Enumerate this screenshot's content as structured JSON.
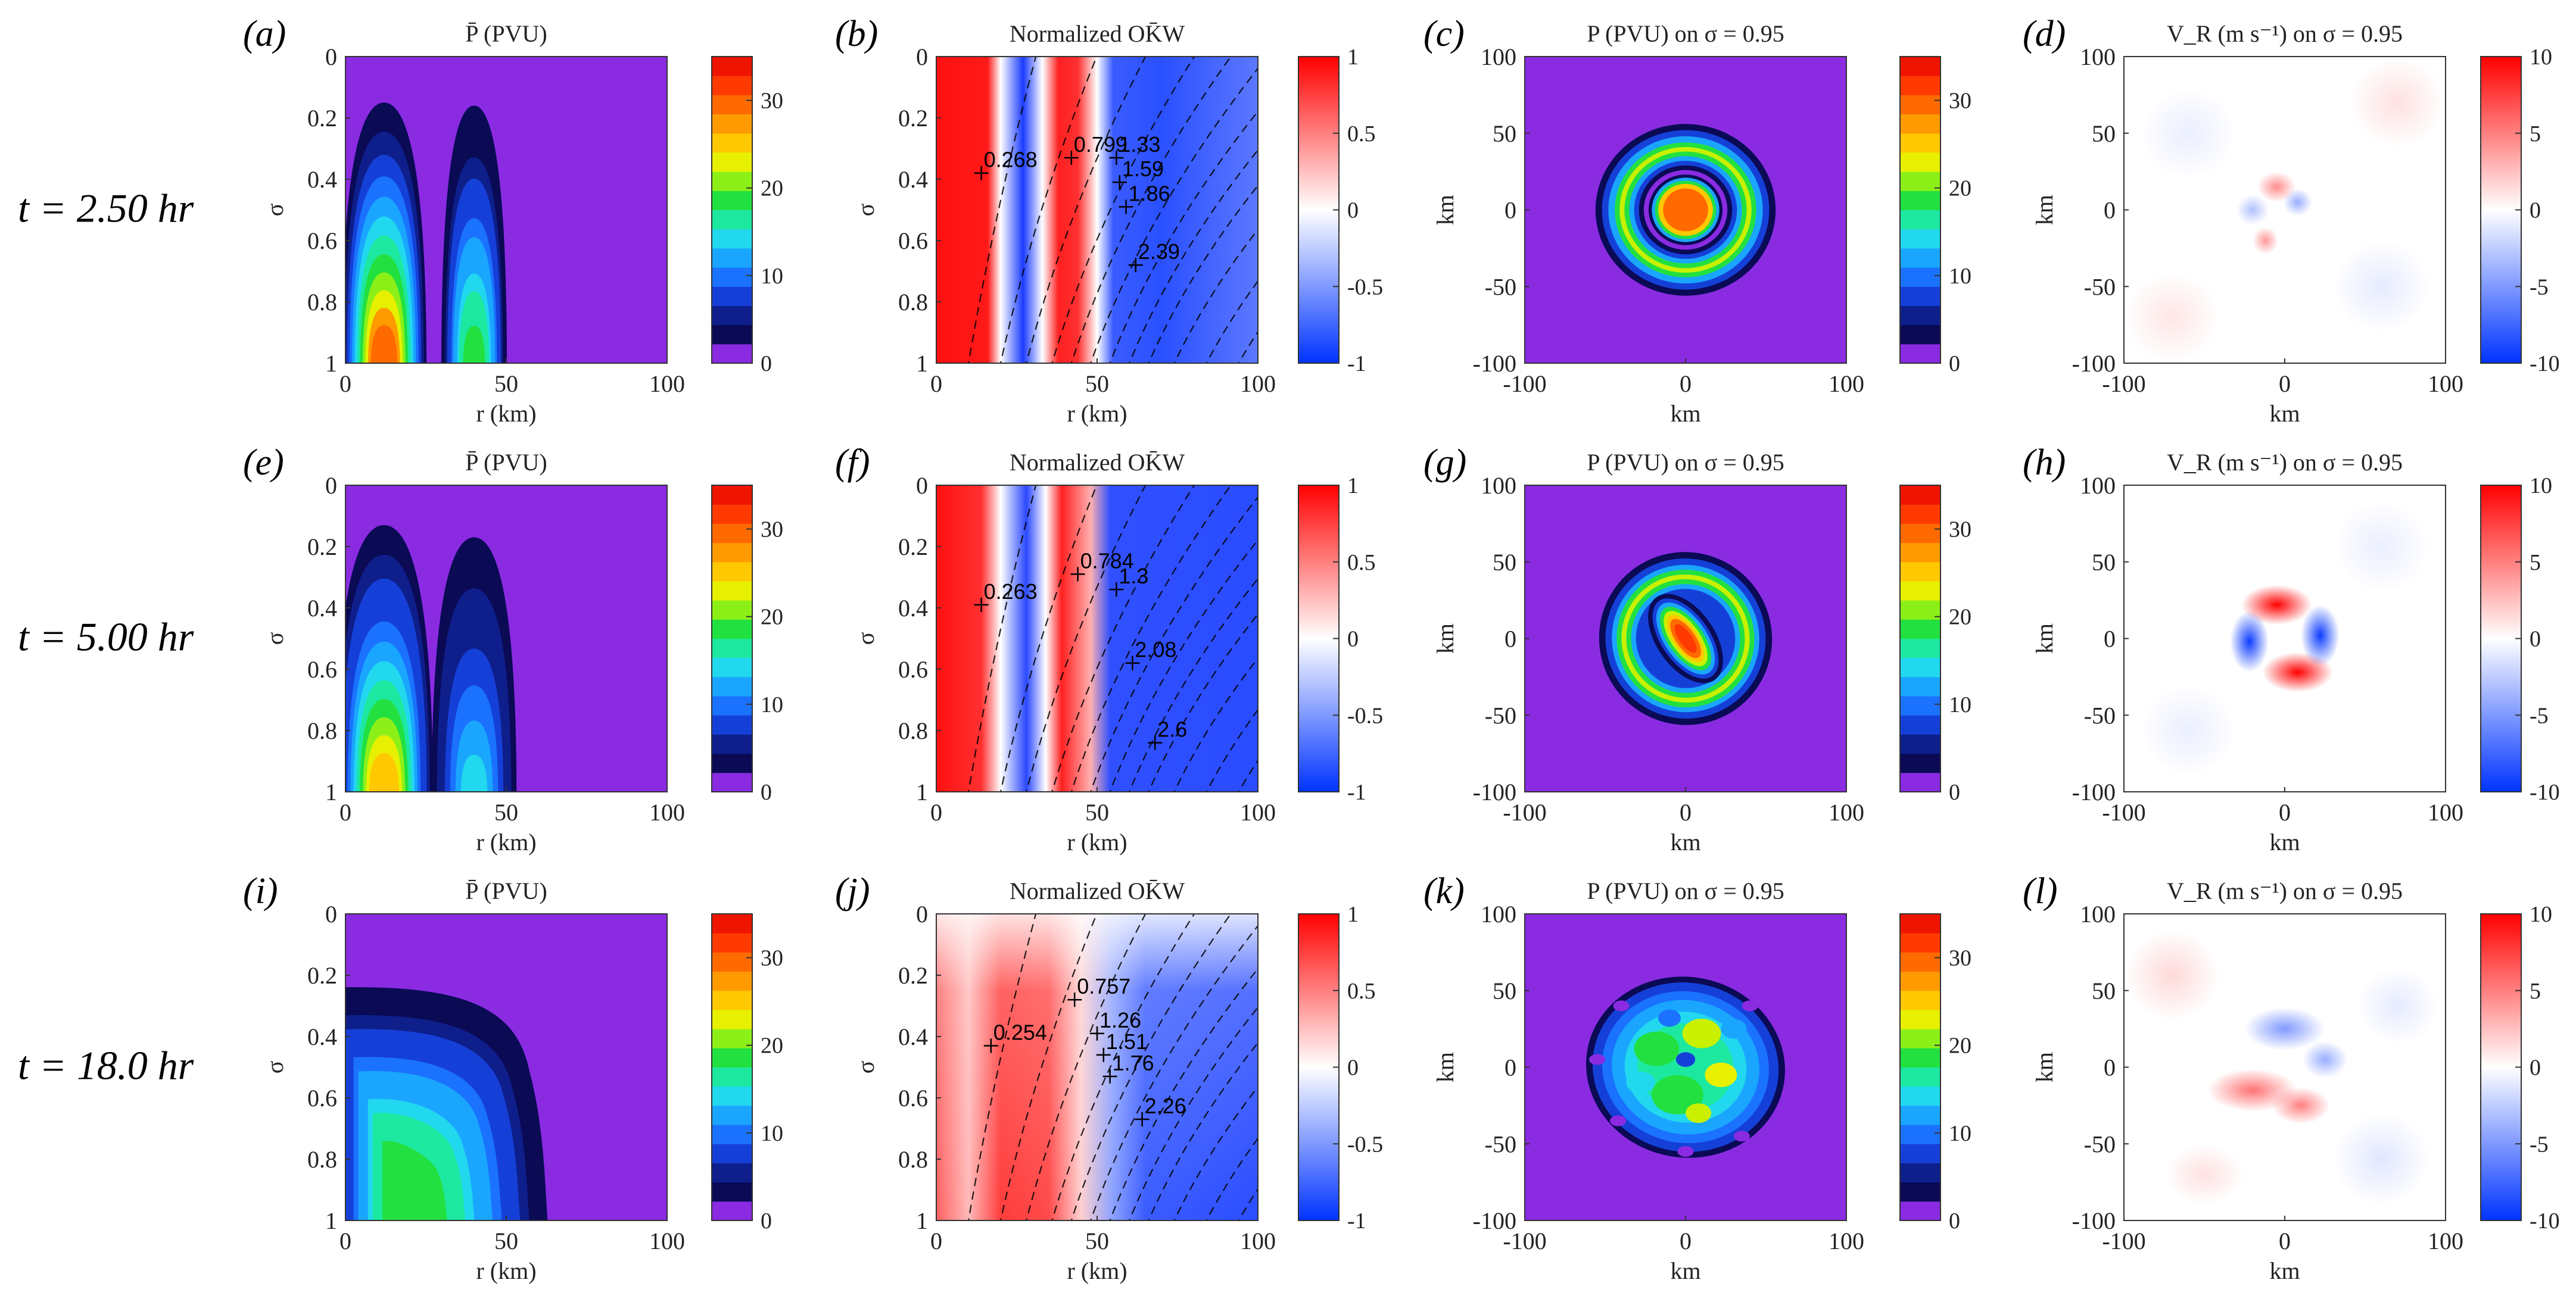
{
  "figure": {
    "row_labels": [
      "t = 2.50 hr",
      "t = 5.00 hr",
      "t = 18.0 hr"
    ],
    "panel_labels": [
      "(a)",
      "(b)",
      "(c)",
      "(d)",
      "(e)",
      "(f)",
      "(g)",
      "(h)",
      "(i)",
      "(j)",
      "(k)",
      "(l)"
    ],
    "column_titles": [
      "P̄ (PVU)",
      "Normalized OK̄W",
      "P (PVU) on σ = 0.95",
      "V_R (m s⁻¹) on σ = 0.95"
    ]
  },
  "colors": {
    "pv_levels": [
      "#8a2be2",
      "#0a0a55",
      "#0e1f8c",
      "#1540d8",
      "#1a72ff",
      "#1aa6ff",
      "#21d8ee",
      "#1de8a0",
      "#22e040",
      "#8cf018",
      "#e6f000",
      "#ffc800",
      "#ff9a00",
      "#ff6a00",
      "#ff3a00",
      "#ee1400"
    ],
    "diverging_neg": "#0033ff",
    "diverging_mid": "#ffffff",
    "diverging_pos": "#ff0000",
    "contour": "#000000"
  },
  "chart_data": [
    {
      "panel": "(a)",
      "type": "heatmap",
      "title": "P̄ (PVU)",
      "xlabel": "r (km)",
      "ylabel": "σ",
      "xlim": [
        0,
        100
      ],
      "ylim": [
        0,
        1
      ],
      "y_reversed": true,
      "xticks": [
        0,
        50,
        100
      ],
      "yticks": [
        0,
        0.2,
        0.4,
        0.6,
        0.8,
        1
      ],
      "colorbar": {
        "range": [
          0,
          35
        ],
        "ticks": [
          0,
          10,
          20,
          30
        ]
      },
      "features": [
        {
          "kind": "tower",
          "center_r": 12,
          "half_width": 12,
          "top_sigma": 0.15,
          "peak": 32
        },
        {
          "kind": "tower",
          "center_r": 40,
          "half_width": 9,
          "top_sigma": 0.16,
          "peak": 20
        }
      ]
    },
    {
      "panel": "(b)",
      "type": "heatmap",
      "title": "Normalized OK̄W",
      "xlabel": "r (km)",
      "ylabel": "σ",
      "xlim": [
        0,
        100
      ],
      "ylim": [
        0,
        1
      ],
      "y_reversed": true,
      "xticks": [
        0,
        50,
        100
      ],
      "yticks": [
        0,
        0.2,
        0.4,
        0.6,
        0.8,
        1
      ],
      "colorbar": {
        "range": [
          -1,
          1
        ],
        "ticks": [
          -1,
          -0.5,
          0,
          0.5,
          1
        ]
      },
      "contour_labels": [
        {
          "label": "0.268",
          "r": 14,
          "sigma": 0.38
        },
        {
          "label": "0.799",
          "r": 42,
          "sigma": 0.33
        },
        {
          "label": "1.33",
          "r": 56,
          "sigma": 0.33
        },
        {
          "label": "1.59",
          "r": 57,
          "sigma": 0.41
        },
        {
          "label": "1.86",
          "r": 59,
          "sigma": 0.49
        },
        {
          "label": "2.39",
          "r": 62,
          "sigma": 0.68
        }
      ]
    },
    {
      "panel": "(c)",
      "type": "heatmap",
      "title": "P (PVU) on σ = 0.95",
      "xlabel": "km",
      "ylabel": "km",
      "xlim": [
        -100,
        100
      ],
      "ylim": [
        -100,
        100
      ],
      "xticks": [
        -100,
        0,
        100
      ],
      "yticks": [
        -100,
        -50,
        0,
        50,
        100
      ],
      "colorbar": {
        "range": [
          0,
          35
        ],
        "ticks": [
          0,
          10,
          20,
          30
        ]
      },
      "structure": "concentric rings"
    },
    {
      "panel": "(d)",
      "type": "heatmap",
      "title": "V_R (m s⁻¹) on σ = 0.95",
      "xlabel": "km",
      "ylabel": "km",
      "xlim": [
        -100,
        100
      ],
      "ylim": [
        -100,
        100
      ],
      "xticks": [
        -100,
        0,
        100
      ],
      "yticks": [
        -100,
        -50,
        0,
        50,
        100
      ],
      "colorbar": {
        "range": [
          -10,
          10
        ],
        "ticks": [
          -10,
          -5,
          0,
          5,
          10
        ]
      }
    },
    {
      "panel": "(e)",
      "type": "heatmap",
      "title": "P̄ (PVU)",
      "xlabel": "r (km)",
      "ylabel": "σ",
      "xlim": [
        0,
        100
      ],
      "ylim": [
        0,
        1
      ],
      "y_reversed": true,
      "xticks": [
        0,
        50,
        100
      ],
      "yticks": [
        0,
        0.2,
        0.4,
        0.6,
        0.8,
        1
      ],
      "colorbar": {
        "range": [
          0,
          35
        ],
        "ticks": [
          0,
          10,
          20,
          30
        ]
      },
      "features": [
        {
          "kind": "tower",
          "center_r": 12,
          "half_width": 14,
          "top_sigma": 0.13,
          "peak": 28
        },
        {
          "kind": "tower",
          "center_r": 40,
          "half_width": 12,
          "top_sigma": 0.17,
          "peak": 14
        }
      ]
    },
    {
      "panel": "(f)",
      "type": "heatmap",
      "title": "Normalized OK̄W",
      "xlabel": "r (km)",
      "ylabel": "σ",
      "xlim": [
        0,
        100
      ],
      "ylim": [
        0,
        1
      ],
      "y_reversed": true,
      "xticks": [
        0,
        50,
        100
      ],
      "yticks": [
        0,
        0.2,
        0.4,
        0.6,
        0.8,
        1
      ],
      "colorbar": {
        "range": [
          -1,
          1
        ],
        "ticks": [
          -1,
          -0.5,
          0,
          0.5,
          1
        ]
      },
      "contour_labels": [
        {
          "label": "0.263",
          "r": 14,
          "sigma": 0.39
        },
        {
          "label": "0.784",
          "r": 44,
          "sigma": 0.29
        },
        {
          "label": "1.3",
          "r": 56,
          "sigma": 0.34
        },
        {
          "label": "2.08",
          "r": 61,
          "sigma": 0.58
        },
        {
          "label": "2.6",
          "r": 68,
          "sigma": 0.84
        }
      ]
    },
    {
      "panel": "(g)",
      "type": "heatmap",
      "title": "P (PVU) on σ = 0.95",
      "xlabel": "km",
      "ylabel": "km",
      "xlim": [
        -100,
        100
      ],
      "ylim": [
        -100,
        100
      ],
      "xticks": [
        -100,
        0,
        100
      ],
      "yticks": [
        -100,
        -50,
        0,
        50,
        100
      ],
      "colorbar": {
        "range": [
          0,
          35
        ],
        "ticks": [
          0,
          10,
          20,
          30
        ]
      },
      "structure": "elliptical core inside ring"
    },
    {
      "panel": "(h)",
      "type": "heatmap",
      "title": "V_R (m s⁻¹) on σ = 0.95",
      "xlabel": "km",
      "ylabel": "km",
      "xlim": [
        -100,
        100
      ],
      "ylim": [
        -100,
        100
      ],
      "xticks": [
        -100,
        0,
        100
      ],
      "yticks": [
        -100,
        -50,
        0,
        50,
        100
      ],
      "colorbar": {
        "range": [
          -10,
          10
        ],
        "ticks": [
          -10,
          -5,
          0,
          5,
          10
        ]
      },
      "structure": "quadrupole"
    },
    {
      "panel": "(i)",
      "type": "heatmap",
      "title": "P̄ (PVU)",
      "xlabel": "r (km)",
      "ylabel": "σ",
      "xlim": [
        0,
        100
      ],
      "ylim": [
        0,
        1
      ],
      "y_reversed": true,
      "xticks": [
        0,
        50,
        100
      ],
      "yticks": [
        0,
        0.2,
        0.4,
        0.6,
        0.8,
        1
      ],
      "colorbar": {
        "range": [
          0,
          35
        ],
        "ticks": [
          0,
          10,
          20,
          30
        ]
      },
      "features": [
        {
          "kind": "block",
          "r_max": 62,
          "top_sigma": 0.24,
          "peak": 20
        }
      ]
    },
    {
      "panel": "(j)",
      "type": "heatmap",
      "title": "Normalized OK̄W",
      "xlabel": "r (km)",
      "ylabel": "σ",
      "xlim": [
        0,
        100
      ],
      "ylim": [
        0,
        1
      ],
      "y_reversed": true,
      "xticks": [
        0,
        50,
        100
      ],
      "yticks": [
        0,
        0.2,
        0.4,
        0.6,
        0.8,
        1
      ],
      "colorbar": {
        "range": [
          -1,
          1
        ],
        "ticks": [
          -1,
          -0.5,
          0,
          0.5,
          1
        ]
      },
      "contour_labels": [
        {
          "label": "0.254",
          "r": 17,
          "sigma": 0.43
        },
        {
          "label": "0.757",
          "r": 43,
          "sigma": 0.28
        },
        {
          "label": "1.26",
          "r": 50,
          "sigma": 0.39
        },
        {
          "label": "1.51",
          "r": 52,
          "sigma": 0.46
        },
        {
          "label": "1.76",
          "r": 54,
          "sigma": 0.53
        },
        {
          "label": "2.26",
          "r": 64,
          "sigma": 0.67
        }
      ]
    },
    {
      "panel": "(k)",
      "type": "heatmap",
      "title": "P (PVU) on σ = 0.95",
      "xlabel": "km",
      "ylabel": "km",
      "xlim": [
        -100,
        100
      ],
      "ylim": [
        -100,
        100
      ],
      "xticks": [
        -100,
        0,
        100
      ],
      "yticks": [
        -100,
        -50,
        0,
        50,
        100
      ],
      "colorbar": {
        "range": [
          0,
          35
        ],
        "ticks": [
          0,
          10,
          20,
          30
        ]
      },
      "structure": "turbulent disk"
    },
    {
      "panel": "(l)",
      "type": "heatmap",
      "title": "V_R (m s⁻¹) on σ = 0.95",
      "xlabel": "km",
      "ylabel": "km",
      "xlim": [
        -100,
        100
      ],
      "ylim": [
        -100,
        100
      ],
      "xticks": [
        -100,
        0,
        100
      ],
      "yticks": [
        -100,
        -50,
        0,
        50,
        100
      ],
      "colorbar": {
        "range": [
          -10,
          10
        ],
        "ticks": [
          -10,
          -5,
          0,
          5,
          10
        ]
      }
    }
  ]
}
